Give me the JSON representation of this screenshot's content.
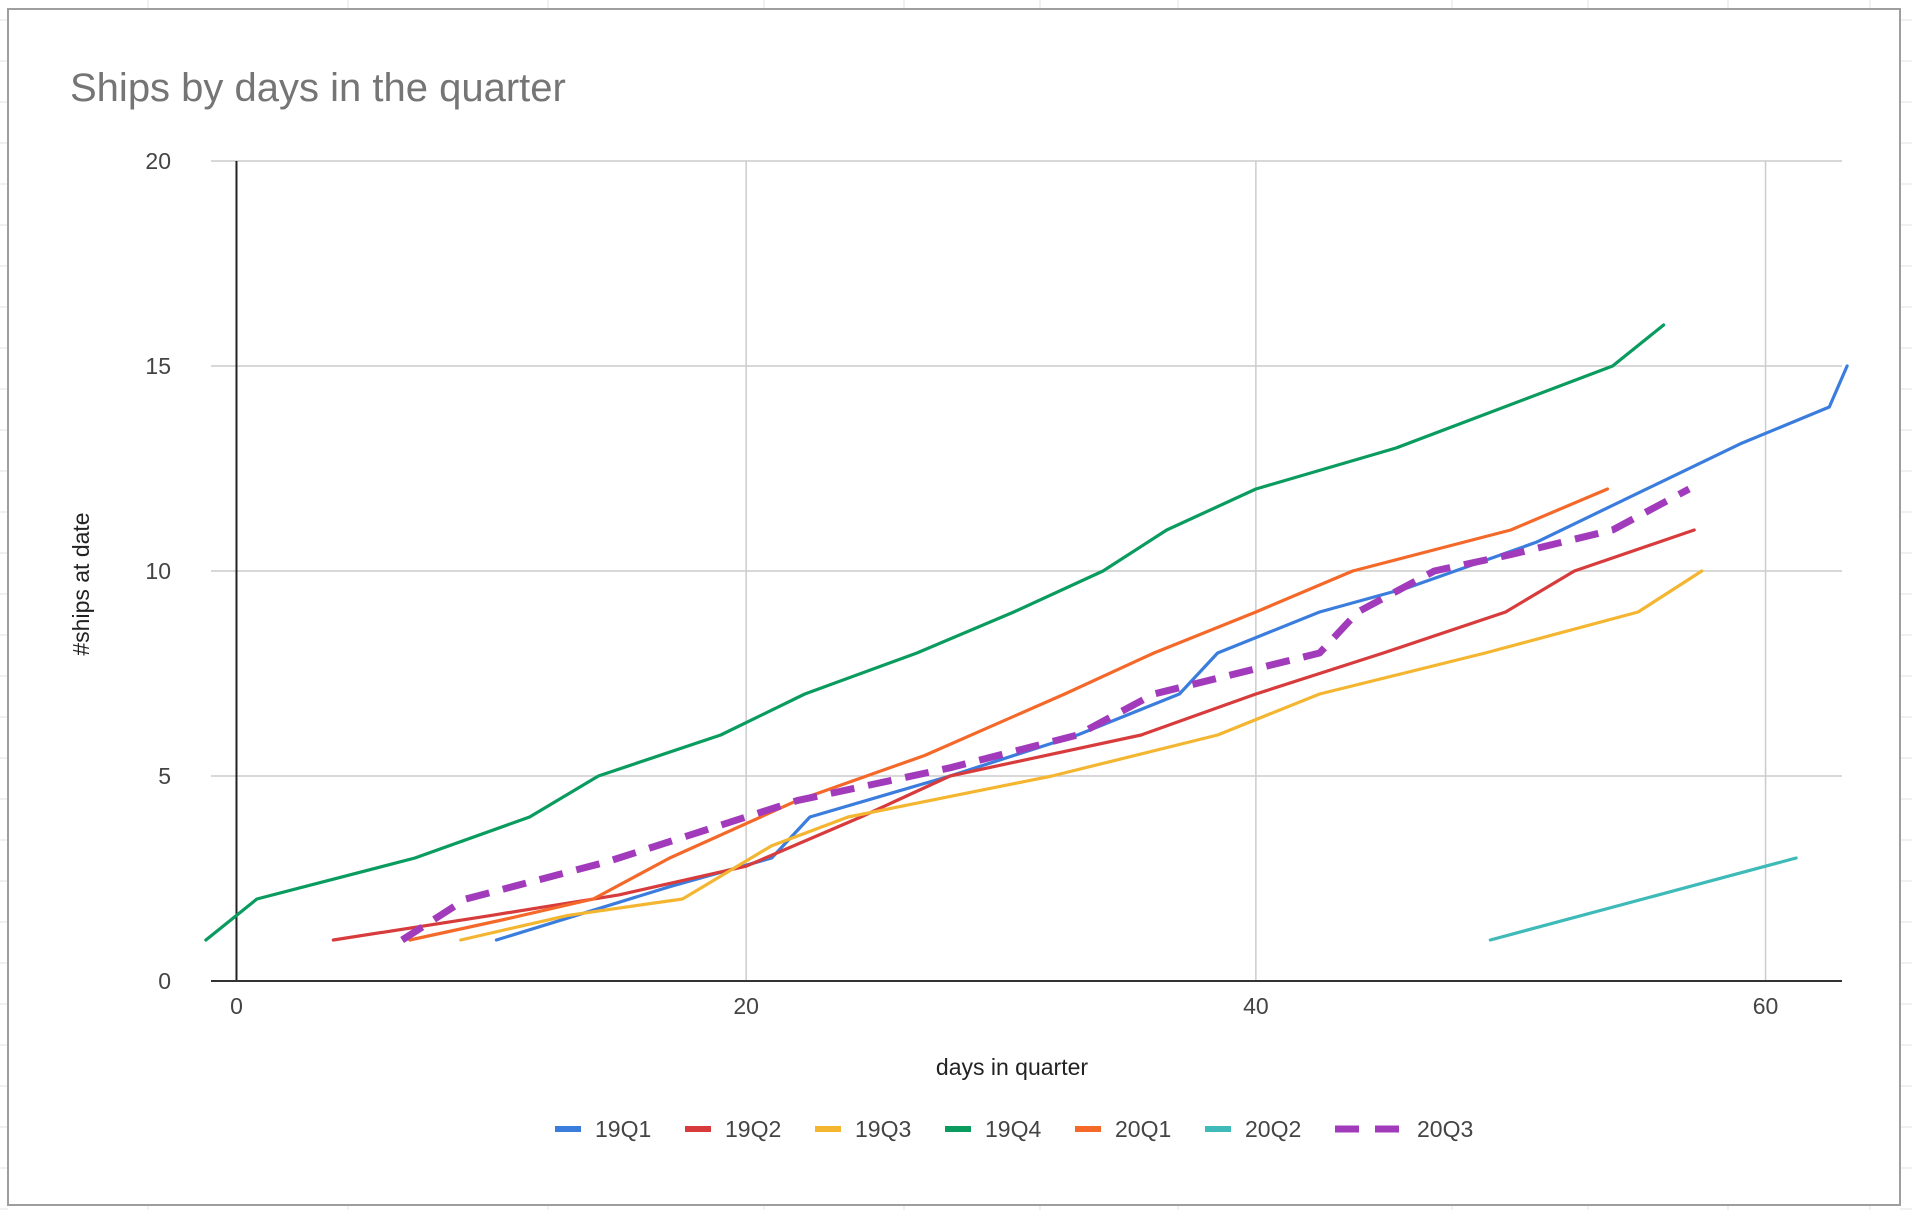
{
  "chart_data": {
    "type": "line",
    "title": "Ships by days in the quarter",
    "xlabel": "days in quarter",
    "ylabel": "#ships at date",
    "xlim": [
      -1,
      63
    ],
    "ylim": [
      0,
      20
    ],
    "x_ticks": [
      0,
      20,
      40,
      60
    ],
    "y_ticks": [
      0,
      5,
      10,
      15,
      20
    ],
    "grid": true,
    "legend_position": "bottom",
    "series": [
      {
        "name": "19Q1",
        "color": "#3b7ddd",
        "dashed": false,
        "points": [
          [
            10.2,
            1
          ],
          [
            17,
            2.3
          ],
          [
            21,
            3
          ],
          [
            22.5,
            4
          ],
          [
            28,
            5
          ],
          [
            33,
            6
          ],
          [
            37,
            7
          ],
          [
            38.5,
            8
          ],
          [
            42.5,
            9
          ],
          [
            46,
            9.6
          ],
          [
            51,
            10.7
          ],
          [
            55,
            11.9
          ],
          [
            59,
            13.1
          ],
          [
            62.5,
            14
          ],
          [
            63.2,
            15
          ]
        ]
      },
      {
        "name": "19Q2",
        "color": "#d83b3b",
        "dashed": false,
        "points": [
          [
            3.8,
            1
          ],
          [
            10,
            1.6
          ],
          [
            15,
            2.1
          ],
          [
            20,
            2.8
          ],
          [
            24.5,
            4
          ],
          [
            28,
            5
          ],
          [
            35.5,
            6
          ],
          [
            40,
            7
          ],
          [
            45,
            8
          ],
          [
            49.8,
            9
          ],
          [
            52.5,
            10
          ],
          [
            57.2,
            11
          ]
        ]
      },
      {
        "name": "19Q3",
        "color": "#f4b631",
        "dashed": false,
        "points": [
          [
            8.8,
            1
          ],
          [
            13,
            1.6
          ],
          [
            17.5,
            2
          ],
          [
            21,
            3.3
          ],
          [
            24,
            4
          ],
          [
            32,
            5
          ],
          [
            38.5,
            6
          ],
          [
            42.5,
            7
          ],
          [
            49,
            8
          ],
          [
            55,
            9
          ],
          [
            57.5,
            10
          ]
        ]
      },
      {
        "name": "19Q4",
        "color": "#0a9b5f",
        "dashed": false,
        "points": [
          [
            -1.2,
            1
          ],
          [
            0.8,
            2
          ],
          [
            7,
            3
          ],
          [
            11.5,
            4
          ],
          [
            14.2,
            5
          ],
          [
            19,
            6
          ],
          [
            22.3,
            7
          ],
          [
            26.7,
            8
          ],
          [
            30.5,
            9
          ],
          [
            34,
            10
          ],
          [
            36.5,
            11
          ],
          [
            40,
            12
          ],
          [
            45.5,
            13
          ],
          [
            54,
            15
          ],
          [
            56,
            16
          ]
        ]
      },
      {
        "name": "20Q1",
        "color": "#f4692a",
        "dashed": false,
        "points": [
          [
            6.8,
            1
          ],
          [
            10.5,
            1.5
          ],
          [
            14,
            2
          ],
          [
            17,
            3
          ],
          [
            22,
            4.4
          ],
          [
            27,
            5.5
          ],
          [
            32.5,
            7
          ],
          [
            36,
            8
          ],
          [
            40,
            9
          ],
          [
            43.8,
            10
          ],
          [
            50,
            11
          ],
          [
            53.8,
            12
          ]
        ]
      },
      {
        "name": "20Q2",
        "color": "#3ebab8",
        "dashed": false,
        "points": [
          [
            49.2,
            1
          ],
          [
            61.2,
            3
          ]
        ]
      },
      {
        "name": "20Q3",
        "color": "#a23bbb",
        "dashed": true,
        "points": [
          [
            6.5,
            1
          ],
          [
            9,
            2
          ],
          [
            14.5,
            2.9
          ],
          [
            22,
            4.4
          ],
          [
            28,
            5.2
          ],
          [
            33,
            6
          ],
          [
            36,
            7
          ],
          [
            42.5,
            8
          ],
          [
            44,
            9
          ],
          [
            47,
            10
          ],
          [
            50,
            10.4
          ],
          [
            54,
            11
          ],
          [
            57,
            12
          ]
        ]
      }
    ]
  }
}
